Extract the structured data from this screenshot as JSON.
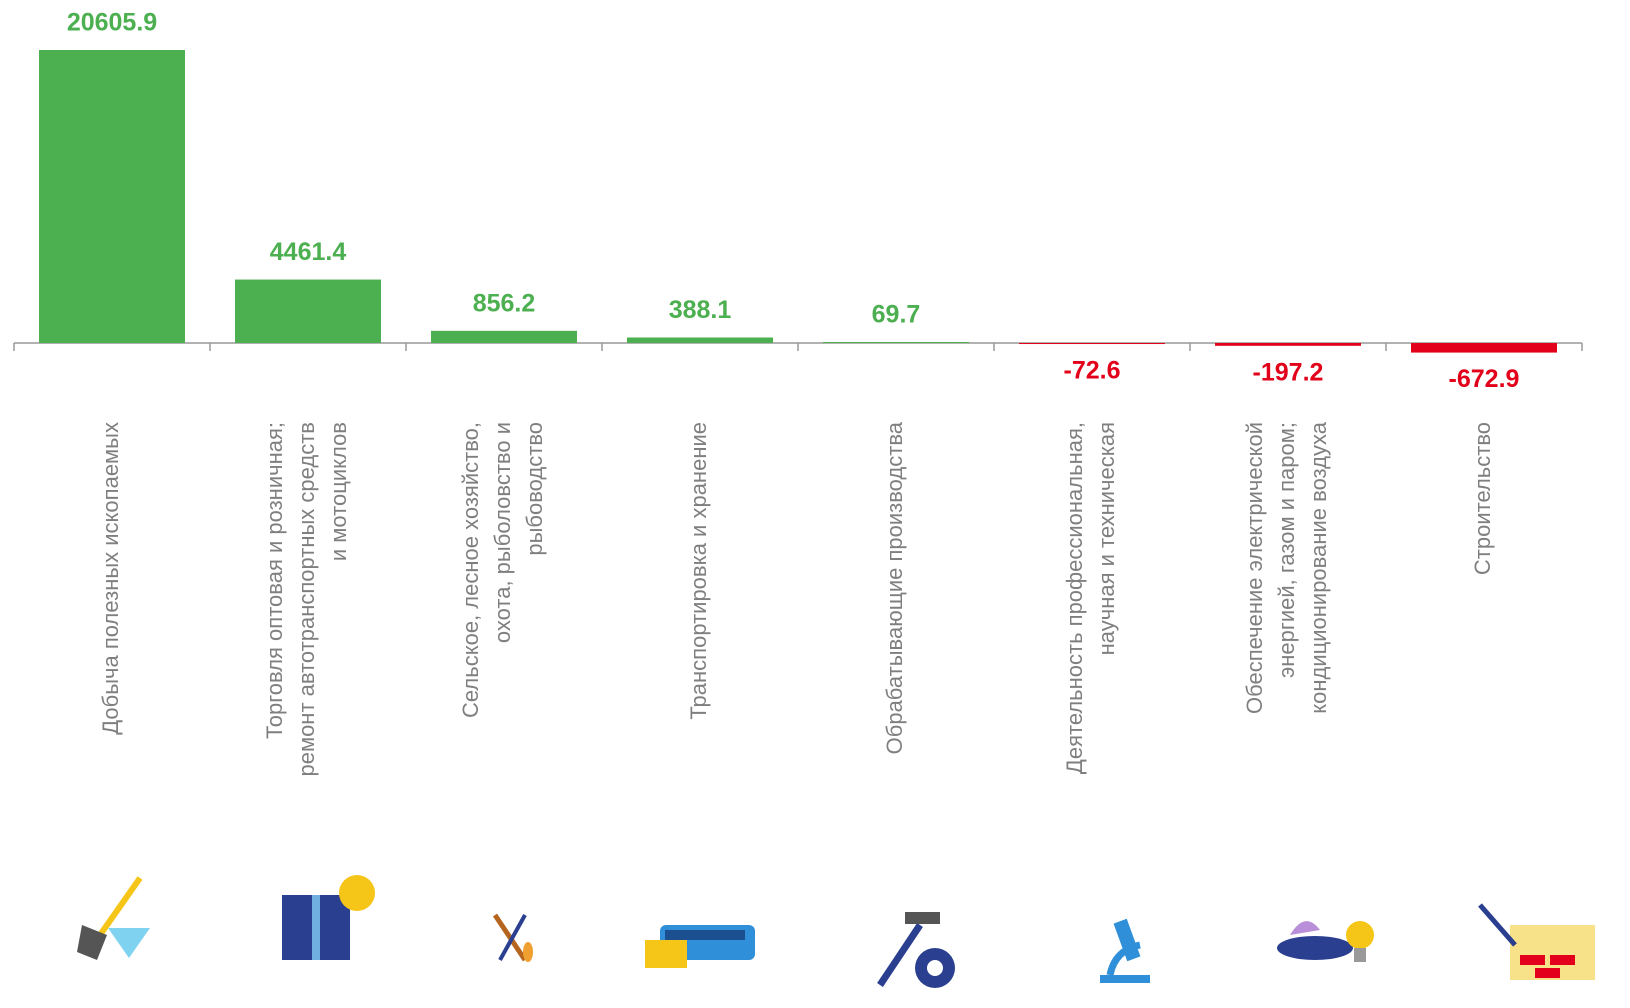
{
  "chart_data": {
    "type": "bar",
    "categories": [
      [
        "Добыча полезных ископаемых"
      ],
      [
        "Торговля оптовая и розничная;",
        "ремонт автотранспортных средств",
        "и мотоциклов"
      ],
      [
        "Сельское, лесное хозяйство,",
        "охота, рыболовство и",
        "рыбоводство"
      ],
      [
        "Транспортировка и хранение"
      ],
      [
        "Обрабатывающие производства"
      ],
      [
        "Деятельность профессиональная,",
        "научная и техническая"
      ],
      [
        "Обеспечение электрической",
        "энергией, газом и паром;",
        "кондиционирование воздуха"
      ],
      [
        "Строительство"
      ]
    ],
    "values": [
      20605.9,
      4461.4,
      856.2,
      388.1,
      69.7,
      -72.6,
      -197.2,
      -672.9
    ],
    "positive_color": "#4caf50",
    "negative_color": "#e2001a"
  }
}
